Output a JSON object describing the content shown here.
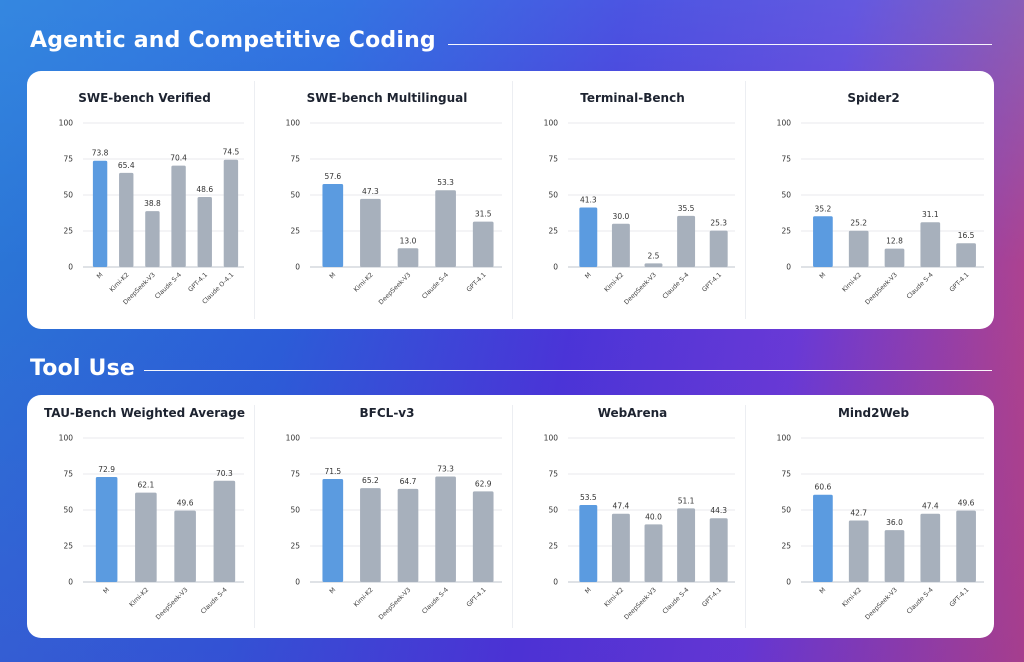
{
  "sections": [
    {
      "title": "Agentic and Competitive Coding",
      "charts": [
        {
          "type": "bar",
          "title": "SWE-bench Verified",
          "categories": [
            "M",
            "Kimi-K2",
            "DeepSeek-V3",
            "Claude S-4",
            "GPT-4.1",
            "Claude O-4.1"
          ],
          "values": [
            73.8,
            65.4,
            38.8,
            70.4,
            48.6,
            74.5
          ],
          "ylim": [
            0,
            100
          ],
          "yticks": [
            0,
            25,
            50,
            75,
            100
          ]
        },
        {
          "type": "bar",
          "title": "SWE-bench Multilingual",
          "categories": [
            "M",
            "Kimi-K2",
            "DeepSeek-V3",
            "Claude S-4",
            "GPT-4.1"
          ],
          "values": [
            57.6,
            47.3,
            13.0,
            53.3,
            31.5
          ],
          "ylim": [
            0,
            100
          ],
          "yticks": [
            0,
            25,
            50,
            75,
            100
          ]
        },
        {
          "type": "bar",
          "title": "Terminal-Bench",
          "categories": [
            "M",
            "Kimi-K2",
            "DeepSeek-V3",
            "Claude S-4",
            "GPT-4.1"
          ],
          "values": [
            41.3,
            30.0,
            2.5,
            35.5,
            25.3
          ],
          "ylim": [
            0,
            100
          ],
          "yticks": [
            0,
            25,
            50,
            75,
            100
          ]
        },
        {
          "type": "bar",
          "title": "Spider2",
          "categories": [
            "M",
            "Kimi-K2",
            "DeepSeek-V3",
            "Claude S-4",
            "GPT-4.1"
          ],
          "values": [
            35.2,
            25.2,
            12.8,
            31.1,
            16.5
          ],
          "ylim": [
            0,
            100
          ],
          "yticks": [
            0,
            25,
            50,
            75,
            100
          ]
        }
      ]
    },
    {
      "title": "Tool Use",
      "charts": [
        {
          "type": "bar",
          "title": "TAU-Bench Weighted Average",
          "categories": [
            "M",
            "Kimi-K2",
            "DeepSeek-V3",
            "Claude S-4"
          ],
          "values": [
            72.9,
            62.1,
            49.6,
            70.3
          ],
          "ylim": [
            0,
            100
          ],
          "yticks": [
            0,
            25,
            50,
            75,
            100
          ]
        },
        {
          "type": "bar",
          "title": "BFCL-v3",
          "categories": [
            "M",
            "Kimi-K2",
            "DeepSeek-V3",
            "Claude S-4",
            "GPT-4.1"
          ],
          "values": [
            71.5,
            65.2,
            64.7,
            73.3,
            62.9
          ],
          "ylim": [
            0,
            100
          ],
          "yticks": [
            0,
            25,
            50,
            75,
            100
          ]
        },
        {
          "type": "bar",
          "title": "WebArena",
          "categories": [
            "M",
            "Kimi-K2",
            "DeepSeek-V3",
            "Claude S-4",
            "GPT-4.1"
          ],
          "values": [
            53.5,
            47.4,
            40.0,
            51.1,
            44.3
          ],
          "ylim": [
            0,
            100
          ],
          "yticks": [
            0,
            25,
            50,
            75,
            100
          ]
        },
        {
          "type": "bar",
          "title": "Mind2Web",
          "categories": [
            "M",
            "Kimi-K2",
            "DeepSeek-V3",
            "Claude S-4",
            "GPT-4.1"
          ],
          "values": [
            60.6,
            42.7,
            36.0,
            47.4,
            49.6
          ],
          "ylim": [
            0,
            100
          ],
          "yticks": [
            0,
            25,
            50,
            75,
            100
          ]
        }
      ]
    }
  ],
  "colors": {
    "highlight": "#5b9be0",
    "default": "#a7b0bc",
    "grid": "#e8eaee",
    "axis": "#bfc4cc"
  }
}
